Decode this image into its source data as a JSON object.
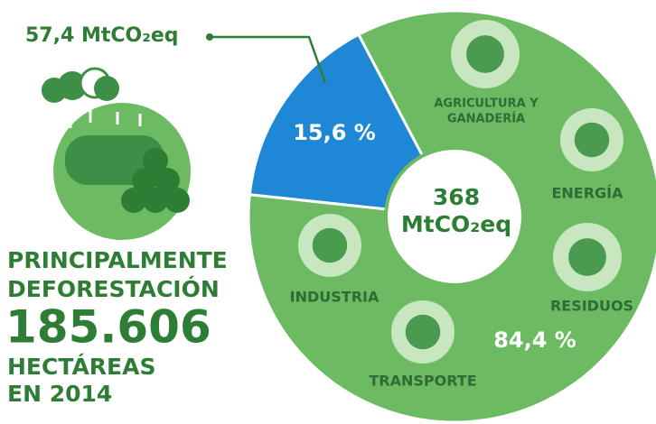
{
  "chart_data": {
    "type": "pie",
    "values": [
      15.6,
      84.4
    ],
    "value_labels": [
      "15,6 %",
      "84,4 %"
    ],
    "colors": [
      "#1e88d6",
      "#6cbb62"
    ],
    "annotation": "57,4 MtCO₂eq",
    "center_label": [
      "368",
      "MtCO₂eq"
    ],
    "sector_labels": [
      "AGRICULTURA Y",
      "GANADERÍA",
      "ENERGÍA",
      "RESIDUOS",
      "INDUSTRIA",
      "TRANSPORTE"
    ]
  },
  "side_text": {
    "line1": "PRINCIPALMENTE",
    "line2": "DEFORESTACIÓN",
    "figure": "185.606",
    "line3": "HECTÁREAS",
    "line4": "EN 2014"
  }
}
